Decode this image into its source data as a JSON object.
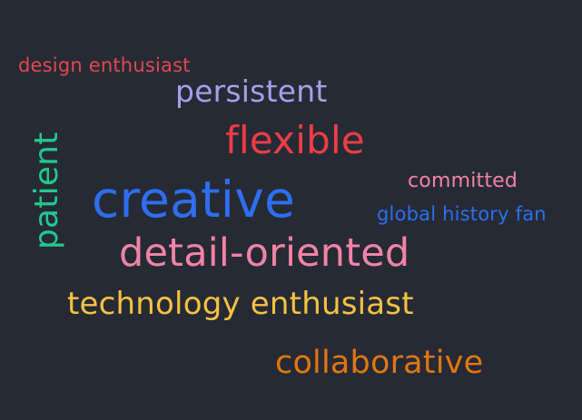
{
  "words": {
    "design": {
      "text": "design enthusiast",
      "color": "#e2474e"
    },
    "persistent": {
      "text": "persistent",
      "color": "#a3a0ec"
    },
    "flexible": {
      "text": "flexible",
      "color": "#ee3d45"
    },
    "committed": {
      "text": "committed",
      "color": "#f083a5"
    },
    "creative": {
      "text": "creative",
      "color": "#2e6ef0"
    },
    "global": {
      "text": "global history fan",
      "color": "#2c6ff2"
    },
    "patient": {
      "text": "patient",
      "color": "#22c98f"
    },
    "detail": {
      "text": "detail-oriented",
      "color": "#f283a5"
    },
    "technology": {
      "text": "technology enthusiast",
      "color": "#f5c242"
    },
    "collaborative": {
      "text": "collaborative",
      "color": "#e0770f"
    }
  },
  "background": "#262a34"
}
